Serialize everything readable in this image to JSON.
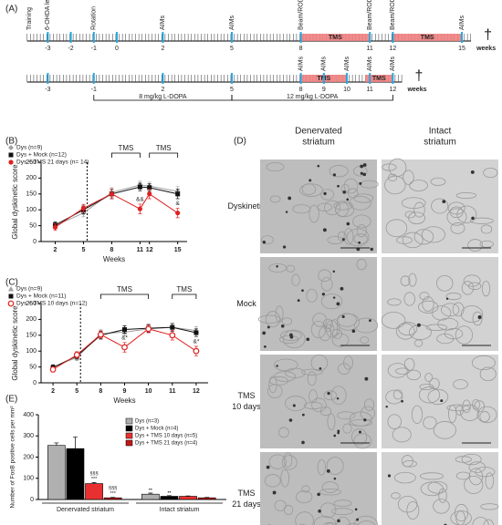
{
  "panel_labels": [
    "(A)",
    "(B)",
    "(C)",
    "(D)",
    "(E)"
  ],
  "timeline": {
    "row1": {
      "weeks": [
        -3,
        -2,
        -1,
        0,
        2,
        5,
        8,
        11,
        12,
        15
      ],
      "unit": "weeks",
      "events": [
        {
          "text": "Training",
          "week": -3.8
        },
        {
          "text": "6-OHDA lesion",
          "week": -3
        },
        {
          "text": "Rotation",
          "week": -1
        },
        {
          "text": "AIMs",
          "week": 2
        },
        {
          "text": "AIMs",
          "week": 5
        },
        {
          "text": "Beam/ROD AIMs",
          "week": 8
        },
        {
          "text": "Beam/ROD AIMs",
          "week": 11
        },
        {
          "text": "Beam/ROD AIMs",
          "week": 12
        },
        {
          "text": "AIMs",
          "week": 15
        }
      ],
      "tms": [
        {
          "text": "TMS",
          "from": 8,
          "to": 11
        },
        {
          "text": "TMS",
          "from": 12,
          "to": 15
        }
      ],
      "end_mark": "†"
    },
    "row2": {
      "weeks": [
        -3,
        -1,
        2,
        5,
        8,
        9,
        10,
        11,
        12
      ],
      "unit": "weeks",
      "events": [
        {
          "text": "AIMs",
          "week": 8
        },
        {
          "text": "AIMs",
          "week": 9
        },
        {
          "text": "AIMs",
          "week": 10
        },
        {
          "text": "AIMs",
          "week": 11
        },
        {
          "text": "AIMs",
          "week": 12
        }
      ],
      "tms": [
        {
          "text": "TMS",
          "from": 8,
          "to": 10
        },
        {
          "text": "TMS",
          "from": 10.8,
          "to": 12
        }
      ],
      "end_mark": "†"
    },
    "doses": [
      {
        "text": "8 mg/kg L-DOPA",
        "from": -1,
        "to": 5
      },
      {
        "text": "12 mg/kg L-DOPA",
        "from": 5,
        "to": 12
      }
    ]
  },
  "chart_data": [
    {
      "type": "line",
      "y_label": "Global dyskinetic score",
      "x_label": "Weeks",
      "x": [
        2,
        5,
        8,
        11,
        12,
        15
      ],
      "xlim": [
        0.5,
        16
      ],
      "xticks": [
        2,
        5,
        8,
        11,
        12,
        15
      ],
      "ylim": [
        0,
        250
      ],
      "yticks": [
        0,
        50,
        100,
        150,
        200,
        250
      ],
      "vline": 5,
      "series": [
        {
          "name": "Dys (n=9)",
          "color": "#a0a0a0",
          "marker": "diamond",
          "values": [
            50,
            90,
            155,
            178,
            175,
            158
          ],
          "errors": [
            10,
            12,
            15,
            12,
            12,
            15
          ]
        },
        {
          "name": "Dys + Mock (n=12)",
          "color": "#111111",
          "marker": "square",
          "values": [
            52,
            100,
            150,
            172,
            170,
            150
          ],
          "errors": [
            10,
            12,
            15,
            12,
            12,
            15
          ]
        },
        {
          "name": "Dys + TMS 21 days (n= 14)",
          "color": "#e02020",
          "marker": "circle",
          "values": [
            45,
            105,
            150,
            103,
            150,
            90
          ],
          "errors": [
            10,
            12,
            15,
            15,
            15,
            15
          ]
        }
      ],
      "brackets": [
        {
          "text": "TMS",
          "from": 8,
          "to": 11
        },
        {
          "text": "TMS",
          "from": 12,
          "to": 15
        }
      ],
      "annotations": [
        {
          "text": "&&",
          "series": 2,
          "index": 3
        },
        {
          "text": "&",
          "series": 2,
          "index": 5
        }
      ]
    },
    {
      "type": "line",
      "y_label": "Global dyskinetic score",
      "x_label": "Weeks",
      "categories": [
        2,
        5,
        8,
        9,
        10,
        11,
        12
      ],
      "ylim": [
        0,
        250
      ],
      "yticks": [
        0,
        50,
        100,
        150,
        200,
        250
      ],
      "vline": 5,
      "series": [
        {
          "name": "Dys (n=9)",
          "color": "#a0a0a0",
          "marker": "triangle",
          "values": [
            50,
            80,
            155,
            160,
            170,
            175,
            165
          ],
          "errors": [
            8,
            10,
            12,
            12,
            12,
            12,
            12
          ]
        },
        {
          "name": "Dys + Mock (n=11)",
          "color": "#111111",
          "marker": "square",
          "values": [
            48,
            85,
            150,
            168,
            172,
            175,
            158
          ],
          "errors": [
            8,
            10,
            12,
            12,
            12,
            12,
            12
          ]
        },
        {
          "name": "Dys + TMS 10 days (n=12)",
          "color": "#e02020",
          "marker": "open-circle",
          "values": [
            42,
            88,
            152,
            112,
            170,
            150,
            100
          ],
          "errors": [
            8,
            10,
            12,
            15,
            12,
            15,
            15
          ]
        }
      ],
      "brackets": [
        {
          "text": "TMS",
          "from": 8,
          "to": 10
        },
        {
          "text": "TMS",
          "from": 11,
          "to": 12
        }
      ],
      "annotations": [
        {
          "text": "&*",
          "series": 2,
          "index": 3
        },
        {
          "text": "&*",
          "series": 2,
          "index": 6
        }
      ]
    },
    {
      "type": "bar",
      "y_label": "Number of FosB positive cells per mm²",
      "categories": [
        "Denervated striatum",
        "Intact striatum"
      ],
      "ylim": [
        0,
        400
      ],
      "yticks": [
        0,
        100,
        200,
        300,
        400
      ],
      "series": [
        {
          "name": "Dys (n=3)",
          "color": "#b0b0b0",
          "values": [
            255,
            25
          ],
          "errors": [
            12,
            5
          ]
        },
        {
          "name": "Dys + Mock (n=4)",
          "color": "#000000",
          "values": [
            240,
            15
          ],
          "errors": [
            55,
            3
          ]
        },
        {
          "name": "Dys + TMS 10 days (n=5)",
          "color": "#e83030",
          "values": [
            75,
            15
          ],
          "errors": [
            5,
            2
          ]
        },
        {
          "name": "Dys + TMS 21 days (n=4)",
          "color": "#c01818",
          "values": [
            8,
            8
          ],
          "errors": [
            2,
            2
          ]
        }
      ],
      "annotations": [
        {
          "text": [
            "§§§",
            "***"
          ],
          "series": 2,
          "index": 0
        },
        {
          "text": [
            "§§§",
            "***"
          ],
          "series": 3,
          "index": 0
        },
        {
          "text": [
            "••"
          ],
          "series": 0,
          "index": 1
        },
        {
          "text": [
            "••"
          ],
          "series": 1,
          "index": 1
        }
      ]
    }
  ],
  "micrographs": {
    "columns": [
      [
        "Denervated",
        "striatum"
      ],
      [
        "Intact",
        "striatum"
      ]
    ],
    "rows": [
      [
        "Dyskinetic"
      ],
      [
        "Mock"
      ],
      [
        "TMS",
        "10 days"
      ],
      [
        "TMS",
        "21 days"
      ]
    ]
  }
}
